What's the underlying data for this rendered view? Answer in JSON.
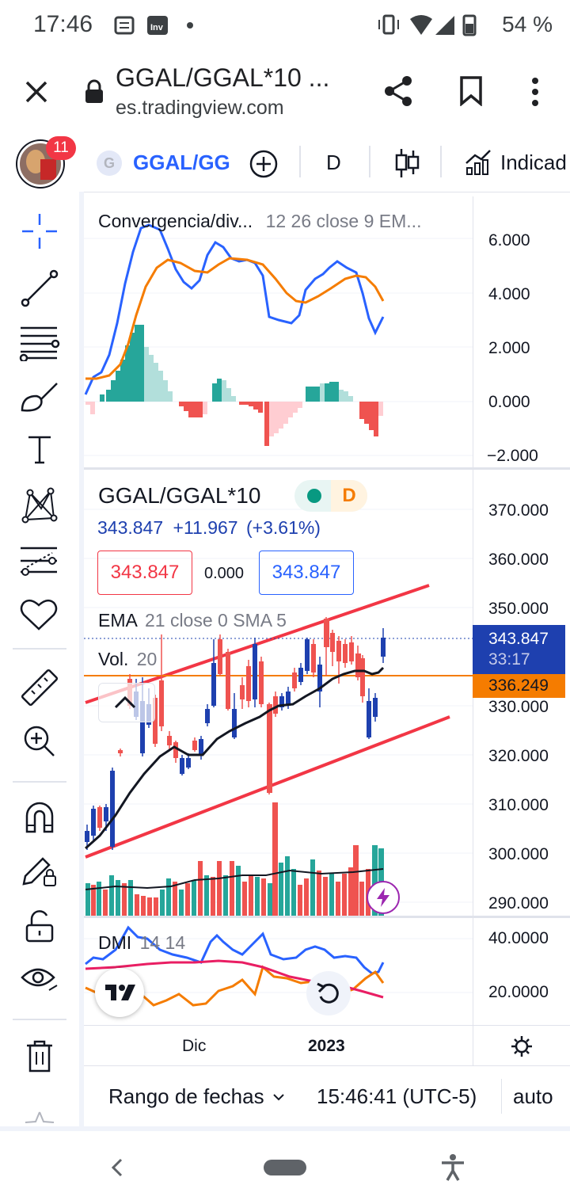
{
  "status_bar": {
    "time": "17:46",
    "battery": "54 %"
  },
  "browser": {
    "title": "GGAL/GGAL*10 ...",
    "url": "es.tradingview.com"
  },
  "toolbar": {
    "notifications": "11",
    "symbol_badge": "G",
    "symbol": "GGAL/GG",
    "interval": "D",
    "indicators_label": "Indicad"
  },
  "macd": {
    "title": "Convergencia/div...",
    "params": "12 26 close 9 EM...",
    "scale": [
      "6.000",
      "4.000",
      "2.000",
      "0.000",
      "−2.000"
    ]
  },
  "main": {
    "symbol_title": "GGAL/GGAL*10",
    "interval_badge": "D",
    "last_price": "343.847",
    "change": "+11.967",
    "change_pct": "(+3.61%)",
    "bid": "343.847",
    "spread": "0.000",
    "ask": "343.847",
    "ema_label": "EMA",
    "ema_params": "21 close 0 SMA 5",
    "vol_label": "Vol.",
    "vol_params": "20",
    "scale": [
      "370.000",
      "360.000",
      "350.000",
      "330.000",
      "320.000",
      "310.000",
      "300.000",
      "290.000"
    ],
    "price_tag": "343.847",
    "countdown": "33:17",
    "ema_tag": "336.249"
  },
  "dmi": {
    "label": "DMI",
    "params": "14 14",
    "scale": [
      "40.0000",
      "20.0000"
    ]
  },
  "time_axis": {
    "labels": [
      "Dic",
      "2023"
    ]
  },
  "bottom_bar": {
    "date_range": "Rango de fechas",
    "clock": "15:46:41 (UTC-5)",
    "auto": "auto"
  },
  "colors": {
    "blue": "#2962ff",
    "up": "#26a69a",
    "down": "#ef5350",
    "orange": "#f57c00",
    "candle_up": "#1e40af"
  }
}
